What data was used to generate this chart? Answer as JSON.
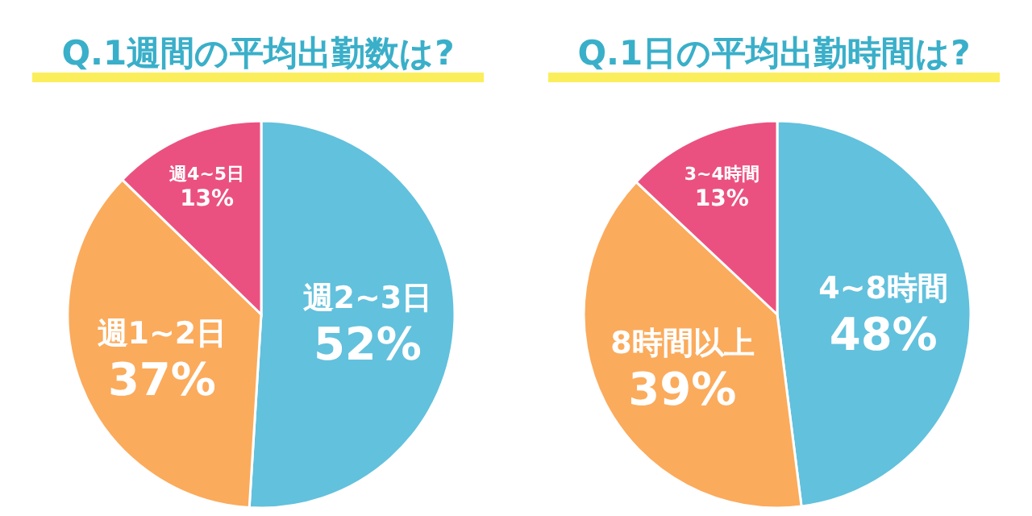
{
  "chart_data": [
    {
      "type": "pie",
      "title": "Q.1週間の平均出勤数は?",
      "categories": [
        "週2~3日",
        "週1~2日",
        "週4~5日"
      ],
      "values": [
        52,
        37,
        13
      ],
      "colors": [
        "#62c1dd",
        "#fbab5c",
        "#eb5180"
      ],
      "value_labels": [
        "52%",
        "37%",
        "13%"
      ]
    },
    {
      "type": "pie",
      "title": "Q.1日の平均出勤時間は?",
      "categories": [
        "4~8時間",
        "8時間以上",
        "3~4時間"
      ],
      "values": [
        48,
        39,
        13
      ],
      "colors": [
        "#62c1dd",
        "#fbab5c",
        "#eb5180"
      ],
      "value_labels": [
        "48%",
        "39%",
        "13%"
      ]
    }
  ]
}
